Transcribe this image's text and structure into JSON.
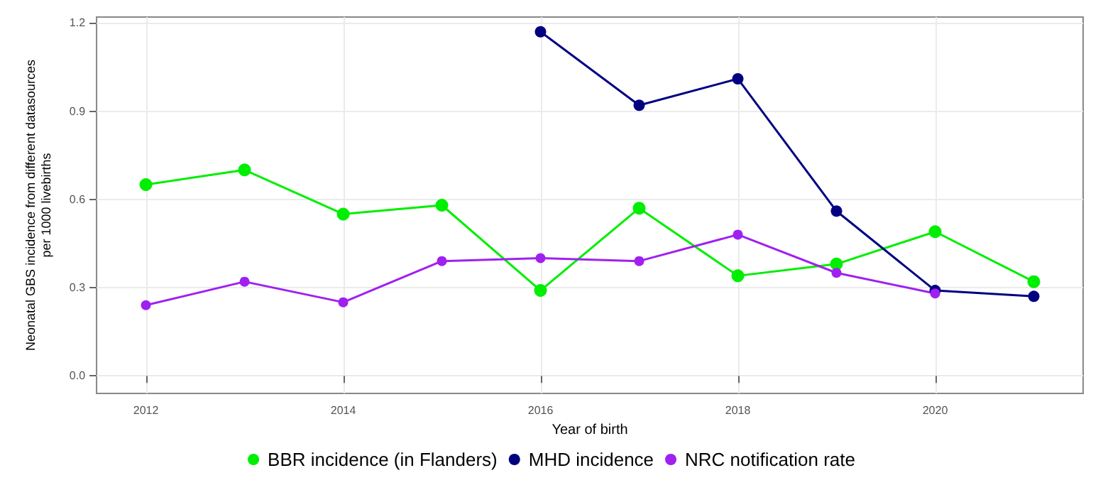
{
  "chart_data": {
    "type": "line",
    "xlabel": "Year of birth",
    "ylabel": "Neonatal GBS incidence from different datasources\nper 1000 livebirths",
    "x": [
      2012,
      2013,
      2014,
      2015,
      2016,
      2017,
      2018,
      2019,
      2020,
      2021
    ],
    "series": [
      {
        "name": "BBR incidence (in Flanders)",
        "color": "#00ee00",
        "values": [
          0.65,
          0.7,
          0.55,
          0.58,
          0.29,
          0.57,
          0.34,
          0.38,
          0.49,
          0.32
        ]
      },
      {
        "name": "MHD incidence",
        "color": "#000080",
        "values": [
          null,
          null,
          null,
          null,
          1.17,
          0.92,
          1.01,
          0.56,
          0.29,
          0.27
        ]
      },
      {
        "name": "NRC notification rate",
        "color": "#a020f0",
        "values": [
          0.24,
          0.32,
          0.25,
          0.39,
          0.4,
          0.39,
          0.48,
          0.35,
          0.28,
          null
        ]
      }
    ],
    "xlim": [
      2011.5,
      2021.5
    ],
    "xticks": [
      2012,
      2014,
      2016,
      2018,
      2020
    ],
    "ylim": [
      -0.06,
      1.22
    ],
    "yticks": [
      {
        "value": 0,
        "label": "0.0"
      },
      {
        "value": 0.3,
        "label": "0.3"
      },
      {
        "value": 0.6,
        "label": "0.6"
      },
      {
        "value": 0.9,
        "label": "0.9"
      },
      {
        "value": 1.2,
        "label": "1.2"
      }
    ],
    "grid": true,
    "legend": "bottom",
    "marker": "circle",
    "line_style": "solid"
  }
}
